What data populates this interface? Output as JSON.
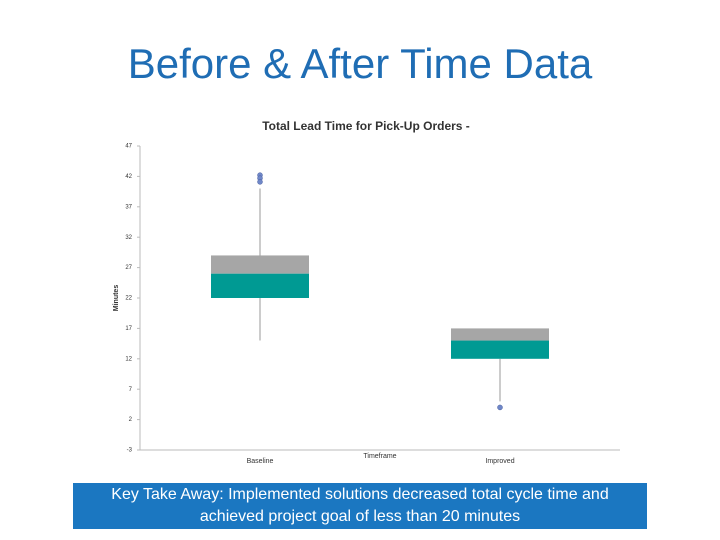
{
  "slide_title": "Before & After Time Data",
  "chart_data": {
    "type": "box",
    "title": "Total Lead Time for Pick-Up Orders -",
    "x_label": "Timeframe",
    "y_label": "Minutes",
    "categories": [
      "Baseline",
      "Improved"
    ],
    "whisker_high": [
      40,
      17
    ],
    "q3": [
      29,
      17
    ],
    "median": [
      26,
      15
    ],
    "q1": [
      22,
      12
    ],
    "whisker_low": [
      15,
      5
    ],
    "outliers": [
      [
        42.2,
        41.7,
        41.1
      ],
      [
        4
      ]
    ],
    "upper_color": "#a6a6a6",
    "lower_color": "#009a93",
    "outlier_color": "#6f87c8",
    "ylim": [
      -3,
      47
    ],
    "yticks": [
      -3,
      2,
      7,
      12,
      17,
      22,
      27,
      32,
      37,
      42,
      47
    ],
    "grid": false
  },
  "takeaway": "Key Take Away: Implemented solutions decreased total cycle time and achieved project goal of less than 20 minutes"
}
